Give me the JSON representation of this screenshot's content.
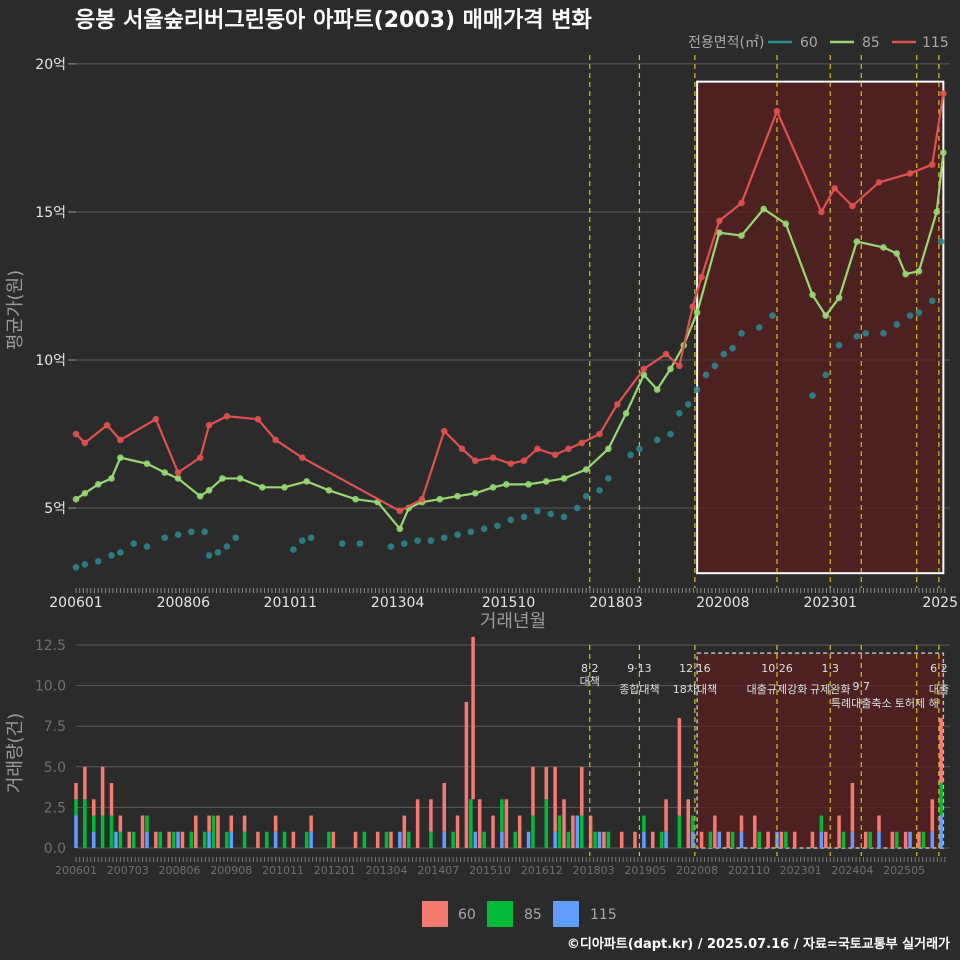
{
  "title": "응봉 서울숲리버그린동아 아파트(2003) 매매가격 변화",
  "footer": "©디아파트(dapt.kr) / 2025.07.16 / 자료=국토교통부 실거래가",
  "colors": {
    "bg": "#2b2b2b",
    "grid": "#5a5a5a",
    "s60": "#2b8a92",
    "s85": "#98d873",
    "s115": "#e05050",
    "v60": "#f47a72",
    "v85": "#00ba38",
    "v115": "#619cff",
    "policy": "#d4c21a",
    "region": "#5a1f1f"
  },
  "chart_data": [
    {
      "type": "line",
      "title": "응봉 서울숲리버그린동아 아파트(2003) 매매가격 변화",
      "xlabel": "거래년월",
      "ylabel": "평균가(원)",
      "x_tick_labels": [
        "200601",
        "200806",
        "201011",
        "201304",
        "201510",
        "201803",
        "202008",
        "202301",
        "2025"
      ],
      "y_ticks": [
        5,
        10,
        15,
        20
      ],
      "y_tick_labels": [
        "5억",
        "10억",
        "15억",
        "20억"
      ],
      "ylim": [
        2.3,
        20.3
      ],
      "xlim": [
        2006.0,
        2025.7
      ],
      "legend": {
        "title": "전용면적(㎡)",
        "placement": "top-right",
        "entries": [
          "60",
          "85",
          "115"
        ]
      },
      "highlight_box": {
        "x": [
          2020.0,
          2025.55
        ],
        "y": [
          2.8,
          19.4
        ]
      },
      "policy_lines": [
        2017.58,
        2018.7,
        2019.95,
        2021.8,
        2023.0,
        2023.7,
        2024.95,
        2025.45
      ],
      "series": [
        {
          "name": "60",
          "x": [
            2006.0,
            2006.2,
            2006.5,
            2006.8,
            2007.0,
            2007.3,
            2007.6,
            2008.0,
            2008.3,
            2008.6,
            2008.9,
            2009.0,
            2009.2,
            2009.4,
            2009.6,
            2010.9,
            2011.1,
            2011.3,
            2012.0,
            2012.4,
            2013.1,
            2013.4,
            2013.7,
            2014.0,
            2014.3,
            2014.6,
            2014.9,
            2015.2,
            2015.5,
            2015.8,
            2016.1,
            2016.4,
            2016.7,
            2017.0,
            2017.3,
            2017.5,
            2017.8,
            2018.0,
            2018.5,
            2018.7,
            2019.1,
            2019.4,
            2019.6,
            2019.8,
            2020.0,
            2020.2,
            2020.4,
            2020.6,
            2020.8,
            2021.0,
            2021.4,
            2021.7,
            2022.6,
            2022.9,
            2023.2,
            2023.6,
            2023.8,
            2024.2,
            2024.5,
            2024.8,
            2025.0,
            2025.3,
            2025.5
          ],
          "y": [
            3.0,
            3.1,
            3.2,
            3.4,
            3.5,
            3.8,
            3.7,
            4.0,
            4.1,
            4.2,
            4.2,
            3.4,
            3.5,
            3.7,
            4.0,
            3.6,
            3.9,
            4.0,
            3.8,
            3.8,
            3.7,
            3.8,
            3.9,
            3.9,
            4.0,
            4.1,
            4.2,
            4.3,
            4.4,
            4.6,
            4.7,
            4.9,
            4.8,
            4.7,
            5.0,
            5.4,
            5.6,
            6.0,
            6.8,
            7.0,
            7.3,
            7.5,
            8.2,
            8.5,
            9.0,
            9.5,
            9.8,
            10.2,
            10.4,
            10.9,
            11.1,
            11.5,
            8.8,
            9.5,
            10.5,
            10.8,
            10.9,
            10.9,
            11.2,
            11.5,
            11.6,
            12.0,
            14.0
          ]
        },
        {
          "name": "85",
          "x": [
            2006.0,
            2006.2,
            2006.5,
            2006.8,
            2007.0,
            2007.6,
            2008.0,
            2008.3,
            2008.8,
            2009.0,
            2009.3,
            2009.7,
            2010.2,
            2010.7,
            2011.2,
            2011.7,
            2012.3,
            2012.8,
            2013.3,
            2013.5,
            2013.8,
            2014.2,
            2014.6,
            2015.0,
            2015.4,
            2015.7,
            2016.2,
            2016.6,
            2017.0,
            2017.5,
            2018.0,
            2018.4,
            2018.8,
            2019.1,
            2019.4,
            2019.7,
            2020.0,
            2020.5,
            2021.0,
            2021.5,
            2022.0,
            2022.6,
            2022.9,
            2023.2,
            2023.6,
            2024.2,
            2024.5,
            2024.7,
            2025.0,
            2025.4,
            2025.55
          ],
          "y": [
            5.3,
            5.5,
            5.8,
            6.0,
            6.7,
            6.5,
            6.2,
            6.0,
            5.4,
            5.6,
            6.0,
            6.0,
            5.7,
            5.7,
            5.9,
            5.6,
            5.3,
            5.2,
            4.3,
            5.0,
            5.2,
            5.3,
            5.4,
            5.5,
            5.7,
            5.8,
            5.8,
            5.9,
            6.0,
            6.3,
            7.0,
            8.2,
            9.5,
            9.0,
            9.7,
            10.5,
            11.6,
            14.3,
            14.2,
            15.1,
            14.6,
            12.2,
            11.5,
            12.1,
            14.0,
            13.8,
            13.6,
            12.9,
            13.0,
            15.0,
            17.0
          ]
        },
        {
          "name": "115",
          "x": [
            2006.0,
            2006.2,
            2006.7,
            2007.0,
            2007.8,
            2008.3,
            2008.8,
            2009.0,
            2009.4,
            2010.1,
            2010.5,
            2011.1,
            2013.3,
            2013.8,
            2014.3,
            2014.7,
            2015.0,
            2015.4,
            2015.8,
            2016.1,
            2016.4,
            2016.8,
            2017.1,
            2017.4,
            2017.8,
            2018.2,
            2018.8,
            2019.3,
            2019.6,
            2019.9,
            2020.1,
            2020.5,
            2021.0,
            2021.8,
            2022.8,
            2023.1,
            2023.5,
            2024.1,
            2024.8,
            2025.3,
            2025.55
          ],
          "y": [
            7.5,
            7.2,
            7.8,
            7.3,
            8.0,
            6.2,
            6.7,
            7.8,
            8.1,
            8.0,
            7.3,
            6.7,
            4.9,
            5.3,
            7.6,
            7.0,
            6.6,
            6.7,
            6.5,
            6.6,
            7.0,
            6.8,
            7.0,
            7.2,
            7.5,
            8.5,
            9.7,
            10.2,
            9.8,
            11.8,
            12.8,
            14.7,
            15.3,
            18.4,
            15.0,
            15.8,
            15.2,
            16.0,
            16.3,
            16.6,
            19.0
          ]
        }
      ]
    },
    {
      "type": "bar",
      "title": "",
      "xlabel": "",
      "ylabel": "거래량(건)",
      "stacked": true,
      "y_ticks": [
        0,
        2.5,
        5,
        7.5,
        10,
        12.5
      ],
      "y_tick_labels": [
        "0.0",
        "2.5",
        "5.0",
        "7.5",
        "10.0",
        "12.5"
      ],
      "ylim": [
        0,
        12.5
      ],
      "xlim": [
        2006.0,
        2025.7
      ],
      "x_tick_labels": [
        "200601",
        "200703",
        "200806",
        "200908",
        "201011",
        "201201",
        "201304",
        "201407",
        "201510",
        "201612",
        "201803",
        "201905",
        "202008",
        "202110",
        "202301",
        "202404",
        "202505"
      ],
      "legend": {
        "placement": "bottom",
        "entries": [
          "60",
          "85",
          "115"
        ]
      },
      "annotations": [
        {
          "date": "8·2",
          "label": "대책",
          "x": 2017.58
        },
        {
          "date": "9·13",
          "label": "종합대책",
          "x": 2018.7
        },
        {
          "date": "12·16",
          "label": "18차대책",
          "x": 2019.95
        },
        {
          "date": "10·26",
          "label": "대출규제강화",
          "x": 2021.8
        },
        {
          "date": "1·3",
          "label": "규제완화",
          "x": 2023.0
        },
        {
          "date": "9·7",
          "label": "특례대출축소",
          "x": 2023.7
        },
        {
          "date": "",
          "label": "토허제 해",
          "x": 2024.95
        },
        {
          "date": "6·2",
          "label": "대출",
          "x": 2025.45
        }
      ],
      "highlight_box": {
        "x": [
          2020.0,
          2025.55
        ],
        "y": [
          0,
          12.0
        ]
      },
      "series": [
        {
          "name": "60",
          "x": [
            2006.0,
            2006.2,
            2006.4,
            2006.6,
            2006.8,
            2007.0,
            2007.2,
            2007.5,
            2007.8,
            2008.1,
            2008.4,
            2008.7,
            2009.0,
            2009.2,
            2009.5,
            2009.8,
            2010.1,
            2010.5,
            2010.9,
            2011.3,
            2011.8,
            2012.3,
            2012.8,
            2013.1,
            2013.4,
            2013.7,
            2014.0,
            2014.3,
            2014.6,
            2014.8,
            2014.95,
            2015.1,
            2015.4,
            2015.7,
            2016.0,
            2016.3,
            2016.6,
            2016.8,
            2017.0,
            2017.2,
            2017.4,
            2017.6,
            2017.9,
            2018.3,
            2018.6,
            2019.0,
            2019.3,
            2019.6,
            2019.8,
            2020.1,
            2020.4,
            2020.7,
            2021.0,
            2021.3,
            2021.6,
            2021.9,
            2022.2,
            2022.6,
            2022.9,
            2023.2,
            2023.5,
            2023.8,
            2024.1,
            2024.4,
            2024.7,
            2025.0,
            2025.3,
            2025.5
          ],
          "values": [
            1,
            2,
            1,
            3,
            2,
            1,
            1,
            2,
            1,
            1,
            1,
            2,
            1,
            2,
            1,
            1,
            1,
            1,
            1,
            1,
            1,
            1,
            1,
            1,
            2,
            3,
            2,
            3,
            2,
            9,
            10,
            3,
            2,
            3,
            2,
            3,
            2,
            4,
            3,
            2,
            3,
            2,
            1,
            1,
            1,
            1,
            2,
            6,
            3,
            1,
            2,
            1,
            1,
            2,
            1,
            1,
            1,
            1,
            1,
            2,
            3,
            1,
            1,
            1,
            1,
            1,
            2,
            4
          ]
        },
        {
          "name": "85",
          "x": [
            2006.0,
            2006.2,
            2006.4,
            2006.6,
            2006.8,
            2007.0,
            2007.3,
            2007.6,
            2007.9,
            2008.2,
            2008.6,
            2008.9,
            2009.1,
            2009.4,
            2009.8,
            2010.3,
            2010.7,
            2011.2,
            2011.7,
            2012.5,
            2013.0,
            2013.5,
            2014.0,
            2014.5,
            2014.9,
            2015.2,
            2015.6,
            2015.9,
            2016.3,
            2016.6,
            2016.9,
            2017.1,
            2017.4,
            2017.7,
            2018.0,
            2018.8,
            2019.2,
            2019.6,
            2019.9,
            2020.3,
            2020.8,
            2021.4,
            2022.0,
            2022.8,
            2023.3,
            2023.9,
            2024.5,
            2025.1,
            2025.5
          ],
          "values": [
            1,
            3,
            1,
            2,
            2,
            1,
            1,
            1,
            1,
            1,
            1,
            1,
            2,
            1,
            1,
            1,
            1,
            1,
            1,
            1,
            1,
            1,
            1,
            1,
            3,
            1,
            2,
            1,
            2,
            3,
            2,
            1,
            2,
            1,
            1,
            1,
            1,
            2,
            1,
            1,
            1,
            1,
            1,
            1,
            1,
            1,
            1,
            1,
            2
          ]
        },
        {
          "name": "115",
          "x": [
            2006.0,
            2006.4,
            2006.9,
            2007.6,
            2008.3,
            2009.0,
            2009.5,
            2010.5,
            2011.3,
            2013.3,
            2014.3,
            2015.0,
            2015.6,
            2016.2,
            2016.8,
            2017.3,
            2017.8,
            2018.8,
            2019.3,
            2019.9,
            2020.5,
            2021.0,
            2021.8,
            2022.8,
            2023.5,
            2024.1,
            2024.8,
            2025.3,
            2025.5
          ],
          "values": [
            2,
            1,
            1,
            1,
            1,
            1,
            1,
            1,
            1,
            1,
            1,
            1,
            1,
            1,
            1,
            2,
            1,
            1,
            1,
            1,
            1,
            1,
            1,
            1,
            1,
            1,
            1,
            1,
            2
          ]
        }
      ]
    }
  ]
}
